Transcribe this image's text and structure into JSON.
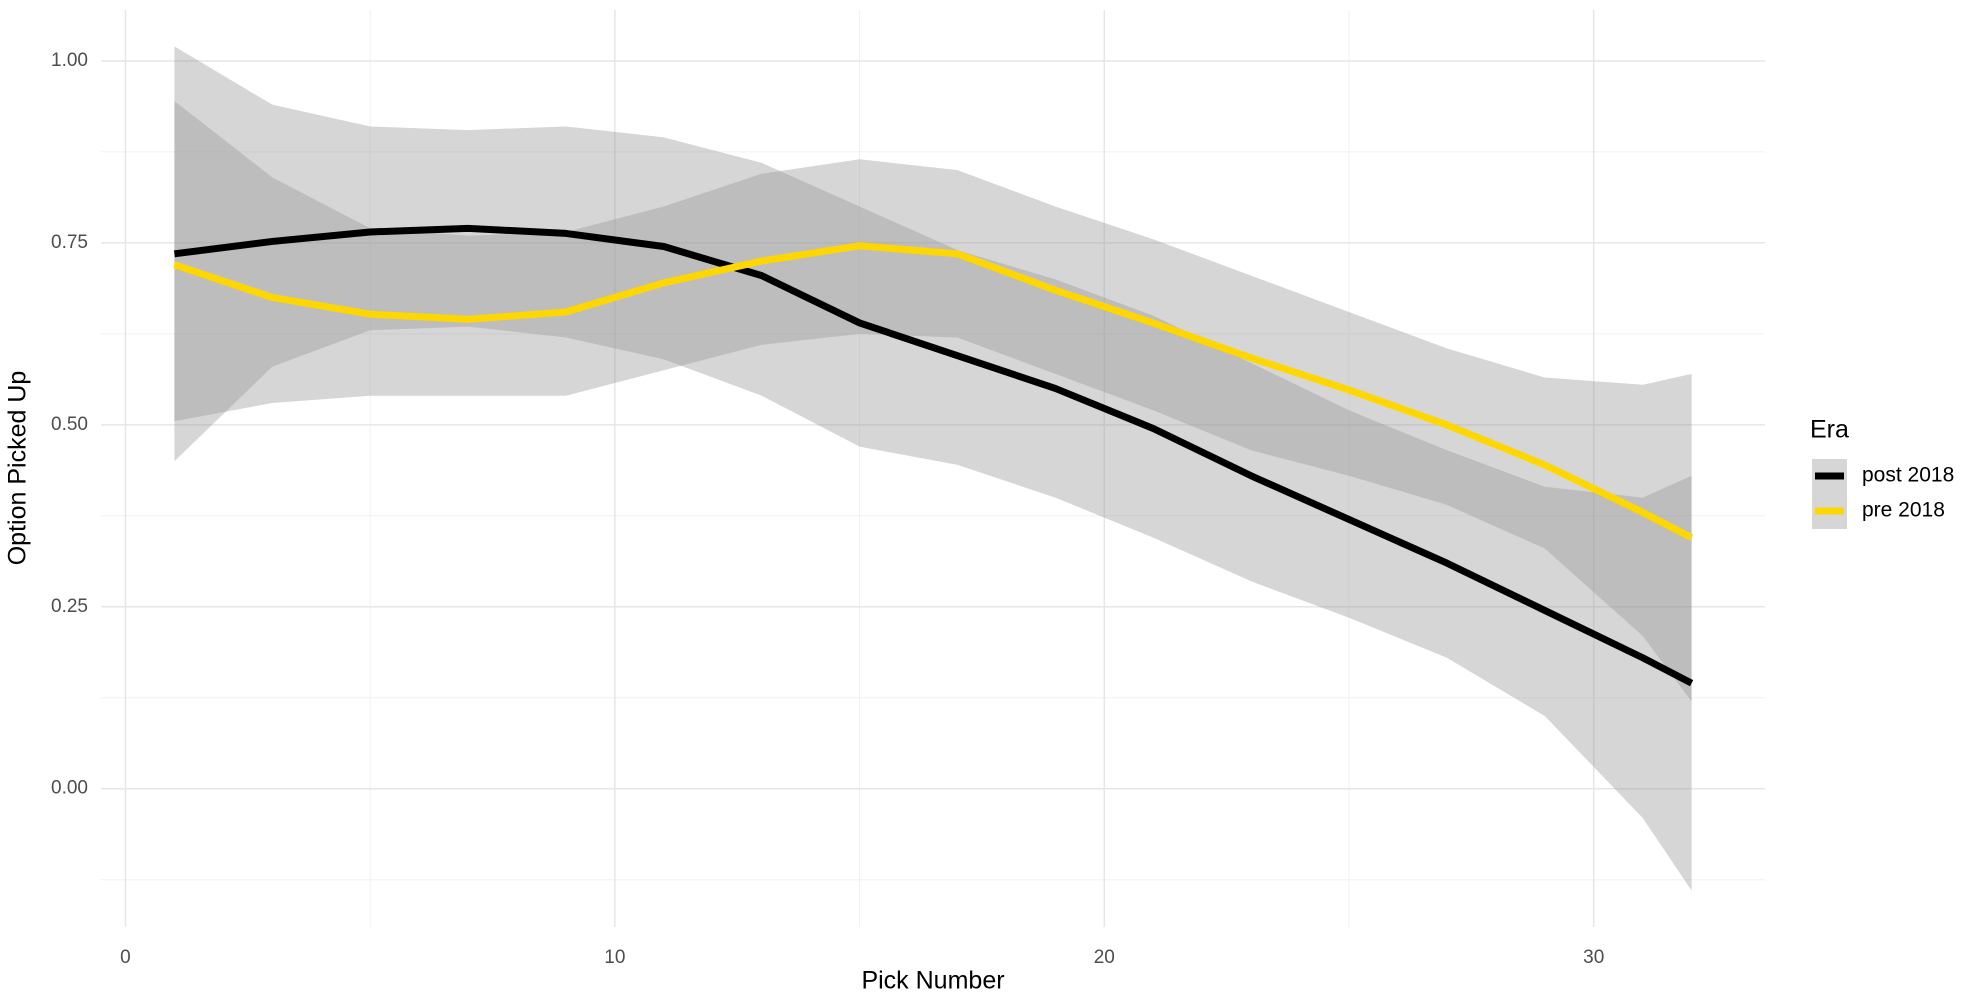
{
  "chart_data": {
    "type": "line",
    "x_label": "Pick Number",
    "y_label": "Option Picked Up",
    "legend_title": "Era",
    "legend_position": "right",
    "grid": true,
    "minor_grid": true,
    "ribbon_color": "#999999",
    "x": [
      1,
      3,
      5,
      7,
      9,
      11,
      13,
      15,
      17,
      19,
      21,
      23,
      25,
      27,
      29,
      31,
      32
    ],
    "series": [
      {
        "name": "post 2018",
        "color": "#000000",
        "values": [
          0.735,
          0.752,
          0.765,
          0.77,
          0.763,
          0.745,
          0.705,
          0.64,
          0.595,
          0.55,
          0.495,
          0.43,
          0.37,
          0.31,
          0.245,
          0.18,
          0.145
        ],
        "upper": [
          1.02,
          0.94,
          0.91,
          0.905,
          0.91,
          0.895,
          0.86,
          0.8,
          0.74,
          0.7,
          0.65,
          0.585,
          0.52,
          0.465,
          0.415,
          0.4,
          0.43
        ],
        "lower": [
          0.45,
          0.58,
          0.63,
          0.635,
          0.62,
          0.59,
          0.54,
          0.47,
          0.445,
          0.4,
          0.345,
          0.285,
          0.235,
          0.18,
          0.1,
          -0.04,
          -0.14
        ]
      },
      {
        "name": "pre 2018",
        "color": "#ffd700",
        "values": [
          0.72,
          0.675,
          0.652,
          0.645,
          0.655,
          0.695,
          0.725,
          0.746,
          0.735,
          0.685,
          0.64,
          0.592,
          0.548,
          0.5,
          0.445,
          0.38,
          0.345
        ],
        "upper": [
          0.945,
          0.84,
          0.77,
          0.76,
          0.765,
          0.8,
          0.845,
          0.865,
          0.85,
          0.8,
          0.755,
          0.705,
          0.655,
          0.605,
          0.565,
          0.555,
          0.57
        ],
        "lower": [
          0.505,
          0.53,
          0.54,
          0.54,
          0.54,
          0.575,
          0.61,
          0.625,
          0.62,
          0.57,
          0.52,
          0.465,
          0.43,
          0.39,
          0.33,
          0.21,
          0.12
        ]
      }
    ],
    "xlim": [
      -0.5,
      33.5
    ],
    "xticks": [
      0,
      10,
      20,
      30
    ],
    "ylim": [
      -0.19,
      1.07
    ],
    "yticks": [
      {
        "value": 0,
        "label": "0.00"
      },
      {
        "value": 0.25,
        "label": "0.25"
      },
      {
        "value": 0.5,
        "label": "0.50"
      },
      {
        "value": 0.75,
        "label": "0.75"
      },
      {
        "value": 1,
        "label": "1.00"
      }
    ]
  }
}
